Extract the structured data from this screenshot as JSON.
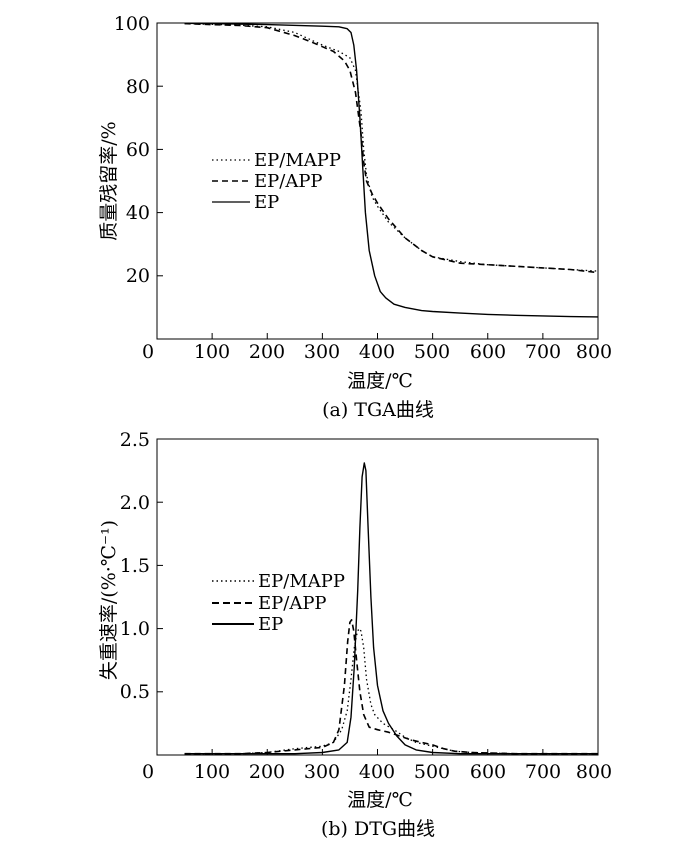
{
  "chart_data": [
    {
      "type": "line",
      "caption": "(a) TGA曲线",
      "xlabel": "温度/℃",
      "ylabel": "质量残留率/%",
      "xlim": [
        0,
        800
      ],
      "ylim": [
        0,
        100
      ],
      "x_ticks": [
        "0",
        "100",
        "200",
        "300",
        "400",
        "500",
        "600",
        "700",
        "800"
      ],
      "y_ticks": [
        "20",
        "40",
        "60",
        "80",
        "100"
      ],
      "x_tick_values": [
        0,
        100,
        200,
        300,
        400,
        500,
        600,
        700,
        800
      ],
      "y_tick_values": [
        20,
        40,
        60,
        80,
        100
      ],
      "grid": false,
      "legend_position": "middle-left",
      "series": [
        {
          "name": "EP/MAPP",
          "line_style": "dotted",
          "points": [
            [
              50,
              99.8
            ],
            [
              100,
              99.6
            ],
            [
              150,
              99.3
            ],
            [
              200,
              98.8
            ],
            [
              250,
              97
            ],
            [
              300,
              93
            ],
            [
              330,
              91
            ],
            [
              350,
              89
            ],
            [
              360,
              85
            ],
            [
              370,
              72
            ],
            [
              375,
              60
            ],
            [
              380,
              52
            ],
            [
              390,
              45
            ],
            [
              400,
              42
            ],
            [
              420,
              37
            ],
            [
              450,
              32
            ],
            [
              480,
              28
            ],
            [
              500,
              26
            ],
            [
              550,
              24.5
            ],
            [
              600,
              23.5
            ],
            [
              650,
              23
            ],
            [
              700,
              22.5
            ],
            [
              750,
              22
            ],
            [
              800,
              21.5
            ]
          ]
        },
        {
          "name": "EP/APP",
          "line_style": "dashed",
          "points": [
            [
              50,
              99.8
            ],
            [
              100,
              99.5
            ],
            [
              150,
              99.2
            ],
            [
              200,
              98.5
            ],
            [
              250,
              96
            ],
            [
              280,
              94
            ],
            [
              300,
              92.5
            ],
            [
              320,
              91
            ],
            [
              340,
              88
            ],
            [
              350,
              85
            ],
            [
              360,
              78
            ],
            [
              370,
              65
            ],
            [
              375,
              56
            ],
            [
              380,
              50
            ],
            [
              390,
              46
            ],
            [
              400,
              43
            ],
            [
              420,
              38
            ],
            [
              450,
              32
            ],
            [
              480,
              28
            ],
            [
              500,
              26
            ],
            [
              550,
              24
            ],
            [
              600,
              23.5
            ],
            [
              650,
              23
            ],
            [
              700,
              22.5
            ],
            [
              750,
              22
            ],
            [
              800,
              21
            ]
          ]
        },
        {
          "name": "EP",
          "line_style": "solid",
          "points": [
            [
              50,
              99.9
            ],
            [
              100,
              99.8
            ],
            [
              200,
              99.5
            ],
            [
              300,
              99
            ],
            [
              330,
              98.8
            ],
            [
              345,
              98.2
            ],
            [
              352,
              97
            ],
            [
              357,
              93
            ],
            [
              362,
              85
            ],
            [
              368,
              70
            ],
            [
              373,
              55
            ],
            [
              378,
              40
            ],
            [
              385,
              28
            ],
            [
              395,
              20
            ],
            [
              405,
              15
            ],
            [
              415,
              13
            ],
            [
              430,
              11
            ],
            [
              450,
              10
            ],
            [
              480,
              9
            ],
            [
              500,
              8.7
            ],
            [
              550,
              8.2
            ],
            [
              600,
              7.8
            ],
            [
              650,
              7.5
            ],
            [
              700,
              7.3
            ],
            [
              750,
              7.1
            ],
            [
              800,
              7
            ]
          ]
        }
      ]
    },
    {
      "type": "line",
      "caption": "(b) DTG曲线",
      "xlabel": "温度/℃",
      "ylabel": "失重速率/(%·℃⁻¹)",
      "xlim": [
        0,
        800
      ],
      "ylim": [
        0,
        2.5
      ],
      "x_ticks": [
        "0",
        "100",
        "200",
        "300",
        "400",
        "500",
        "600",
        "700",
        "800"
      ],
      "y_ticks": [
        "0.5",
        "1.0",
        "1.5",
        "2.0",
        "2.5"
      ],
      "x_tick_values": [
        0,
        100,
        200,
        300,
        400,
        500,
        600,
        700,
        800
      ],
      "y_tick_values": [
        0.5,
        1.0,
        1.5,
        2.0,
        2.5
      ],
      "grid": false,
      "legend_position": "middle-left",
      "series": [
        {
          "name": "EP/MAPP",
          "line_style": "dotted",
          "points": [
            [
              50,
              0.01
            ],
            [
              150,
              0.01
            ],
            [
              200,
              0.02
            ],
            [
              250,
              0.05
            ],
            [
              300,
              0.07
            ],
            [
              320,
              0.1
            ],
            [
              335,
              0.2
            ],
            [
              345,
              0.35
            ],
            [
              352,
              0.6
            ],
            [
              358,
              0.85
            ],
            [
              362,
              0.95
            ],
            [
              366,
              1.0
            ],
            [
              370,
              0.98
            ],
            [
              375,
              0.85
            ],
            [
              380,
              0.6
            ],
            [
              388,
              0.4
            ],
            [
              395,
              0.32
            ],
            [
              410,
              0.25
            ],
            [
              430,
              0.2
            ],
            [
              450,
              0.14
            ],
            [
              470,
              0.1
            ],
            [
              500,
              0.07
            ],
            [
              520,
              0.05
            ],
            [
              540,
              0.03
            ],
            [
              570,
              0.02
            ],
            [
              650,
              0.01
            ],
            [
              800,
              0.01
            ]
          ]
        },
        {
          "name": "EP/APP",
          "line_style": "dashed",
          "points": [
            [
              50,
              0.01
            ],
            [
              150,
              0.01
            ],
            [
              200,
              0.02
            ],
            [
              250,
              0.04
            ],
            [
              300,
              0.06
            ],
            [
              320,
              0.1
            ],
            [
              330,
              0.2
            ],
            [
              340,
              0.55
            ],
            [
              346,
              0.9
            ],
            [
              350,
              1.05
            ],
            [
              353,
              1.07
            ],
            [
              357,
              0.98
            ],
            [
              362,
              0.75
            ],
            [
              368,
              0.5
            ],
            [
              375,
              0.32
            ],
            [
              385,
              0.22
            ],
            [
              400,
              0.2
            ],
            [
              420,
              0.18
            ],
            [
              440,
              0.15
            ],
            [
              460,
              0.12
            ],
            [
              480,
              0.1
            ],
            [
              500,
              0.08
            ],
            [
              520,
              0.05
            ],
            [
              540,
              0.03
            ],
            [
              570,
              0.02
            ],
            [
              650,
              0.01
            ],
            [
              800,
              0.01
            ]
          ]
        },
        {
          "name": "EP",
          "line_style": "solid",
          "points": [
            [
              50,
              0.01
            ],
            [
              150,
              0.01
            ],
            [
              250,
              0.01
            ],
            [
              300,
              0.02
            ],
            [
              330,
              0.04
            ],
            [
              345,
              0.1
            ],
            [
              352,
              0.3
            ],
            [
              358,
              0.7
            ],
            [
              364,
              1.3
            ],
            [
              368,
              1.8
            ],
            [
              372,
              2.2
            ],
            [
              376,
              2.31
            ],
            [
              379,
              2.25
            ],
            [
              383,
              1.8
            ],
            [
              388,
              1.25
            ],
            [
              393,
              0.85
            ],
            [
              400,
              0.55
            ],
            [
              410,
              0.35
            ],
            [
              420,
              0.25
            ],
            [
              435,
              0.15
            ],
            [
              450,
              0.08
            ],
            [
              470,
              0.04
            ],
            [
              500,
              0.02
            ],
            [
              550,
              0.01
            ],
            [
              800,
              0.01
            ]
          ]
        }
      ]
    }
  ]
}
